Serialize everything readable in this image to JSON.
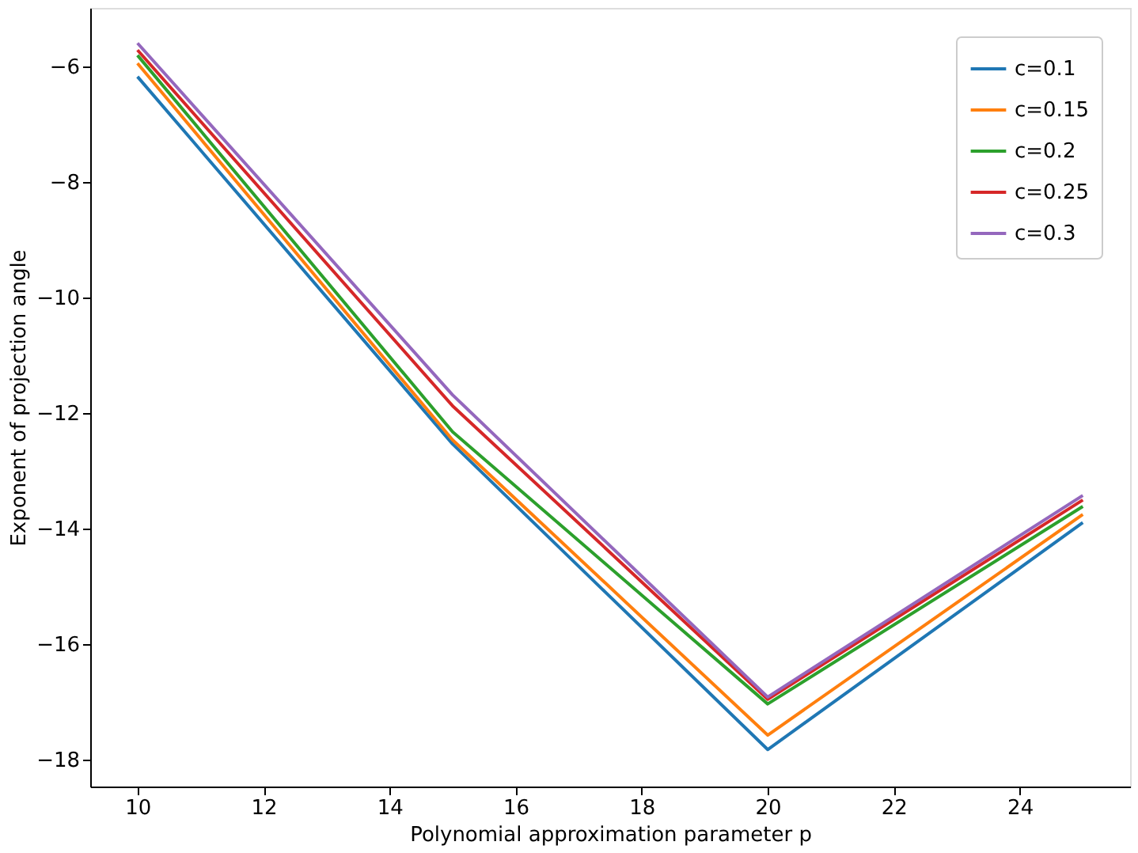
{
  "chart_data": {
    "type": "line",
    "xlabel": "Polynomial approximation parameter p",
    "ylabel": "Exponent of projection angle",
    "x": [
      10,
      15,
      20,
      25
    ],
    "xlim": [
      9.25,
      25.75
    ],
    "xticks": [
      10,
      12,
      14,
      16,
      18,
      20,
      22,
      24
    ],
    "ylim": [
      -18.47,
      -4.99
    ],
    "yticks": [
      -18,
      -16,
      -14,
      -12,
      -10,
      -8,
      -6
    ],
    "grid": false,
    "legend": "top right",
    "marker": "none",
    "line_style": "solid",
    "series": [
      {
        "name": "c=0.1",
        "color": "#1f77b4",
        "values": [
          -6.18,
          -12.54,
          -17.83,
          -13.9
        ]
      },
      {
        "name": "c=0.15",
        "color": "#ff7f0e",
        "values": [
          -5.95,
          -12.47,
          -17.58,
          -13.76
        ]
      },
      {
        "name": "c=0.2",
        "color": "#2ca02c",
        "values": [
          -5.81,
          -12.33,
          -17.04,
          -13.62
        ]
      },
      {
        "name": "c=0.25",
        "color": "#d62728",
        "values": [
          -5.72,
          -11.88,
          -16.96,
          -13.51
        ]
      },
      {
        "name": "c=0.3",
        "color": "#9467bd",
        "values": [
          -5.6,
          -11.69,
          -16.92,
          -13.43
        ]
      }
    ]
  }
}
